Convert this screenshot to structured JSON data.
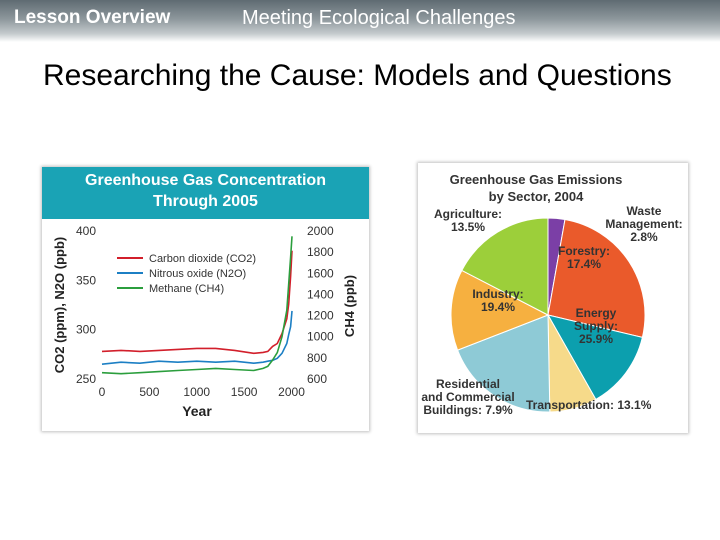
{
  "header": {
    "lesson_label": "Lesson Overview",
    "section_title": "Meeting Ecological Challenges"
  },
  "slide": {
    "title": "Researching the Cause: Models and Questions"
  },
  "colors": {
    "co2": "#d21f2b",
    "n2o": "#1c7fc4",
    "ch4": "#2b9e3d",
    "banner": "#1aa3b5"
  },
  "chart_data": [
    {
      "type": "line",
      "title": "Greenhouse Gas Concentration Through 2005",
      "title_lines": [
        "Greenhouse Gas Concentration",
        "Through 2005"
      ],
      "xlabel": "Year",
      "ylabel": "CO2 (ppm), N2O (ppb)",
      "ylabel_right": "CH4 (ppb)",
      "xlim": [
        0,
        2005
      ],
      "xticks": [
        "0",
        "500",
        "1000",
        "1500",
        "2000"
      ],
      "ylim": [
        250,
        400
      ],
      "yticks": [
        "250",
        "300",
        "350",
        "400"
      ],
      "ylim_right": [
        600,
        2000
      ],
      "yticks_right": [
        "600",
        "800",
        "1000",
        "1200",
        "1400",
        "1600",
        "1800",
        "2000"
      ],
      "legend_position": "top-left",
      "grid": false,
      "series": [
        {
          "name": "Carbon dioxide (CO2)",
          "color": "#d21f2b",
          "axis": "left",
          "x": [
            0,
            200,
            400,
            600,
            800,
            1000,
            1200,
            1400,
            1600,
            1700,
            1750,
            1800,
            1850,
            1900,
            1950,
            1970,
            1990,
            2005
          ],
          "y": [
            278,
            279,
            278,
            279,
            280,
            281,
            281,
            279,
            276,
            277,
            278,
            283,
            286,
            296,
            311,
            326,
            354,
            380
          ]
        },
        {
          "name": "Nitrous oxide (N2O)",
          "color": "#1c7fc4",
          "axis": "left",
          "x": [
            0,
            200,
            400,
            600,
            800,
            1000,
            1200,
            1400,
            1600,
            1700,
            1750,
            1800,
            1850,
            1900,
            1950,
            1970,
            1990,
            2005
          ],
          "y": [
            265,
            267,
            266,
            268,
            267,
            268,
            267,
            268,
            266,
            267,
            268,
            269,
            271,
            276,
            286,
            295,
            303,
            319
          ]
        },
        {
          "name": "Methane (CH4)",
          "color": "#2b9e3d",
          "axis": "right",
          "x": [
            0,
            200,
            400,
            600,
            800,
            1000,
            1200,
            1400,
            1600,
            1700,
            1750,
            1800,
            1850,
            1900,
            1950,
            1970,
            1990,
            2005
          ],
          "y": [
            660,
            650,
            660,
            670,
            680,
            690,
            700,
            690,
            680,
            700,
            720,
            780,
            850,
            1000,
            1250,
            1500,
            1750,
            1950
          ]
        }
      ]
    },
    {
      "type": "pie",
      "title": "Greenhouse Gas Emissions by Sector, 2004",
      "title_lines": [
        "Greenhouse Gas Emissions",
        "by Sector, 2004"
      ],
      "unit": "%",
      "slices": [
        {
          "name": "Waste Management",
          "value": 2.8,
          "label_lines": [
            "Waste",
            "Management:",
            "2.8%"
          ],
          "color": "#7b3fa6"
        },
        {
          "name": "Energy Supply",
          "value": 25.9,
          "label_lines": [
            "Energy",
            "Supply:",
            "25.9%"
          ],
          "color": "#ea5a2b"
        },
        {
          "name": "Transportation",
          "value": 13.1,
          "label_lines": [
            "Transportation: 13.1%"
          ],
          "color": "#0c9fae"
        },
        {
          "name": "Residential and Commercial Buildings",
          "value": 7.9,
          "label_lines": [
            "Residential",
            "and Commercial",
            "Buildings: 7.9%"
          ],
          "color": "#f6da8a"
        },
        {
          "name": "Industry",
          "value": 19.4,
          "label_lines": [
            "Industry:",
            "19.4%"
          ],
          "color": "#8ecad6"
        },
        {
          "name": "Agriculture",
          "value": 13.5,
          "label_lines": [
            "Agriculture:",
            "13.5%"
          ],
          "color": "#f6b040"
        },
        {
          "name": "Forestry",
          "value": 17.4,
          "label_lines": [
            "Forestry:",
            "17.4%"
          ],
          "color": "#9ccf3a"
        }
      ]
    }
  ]
}
